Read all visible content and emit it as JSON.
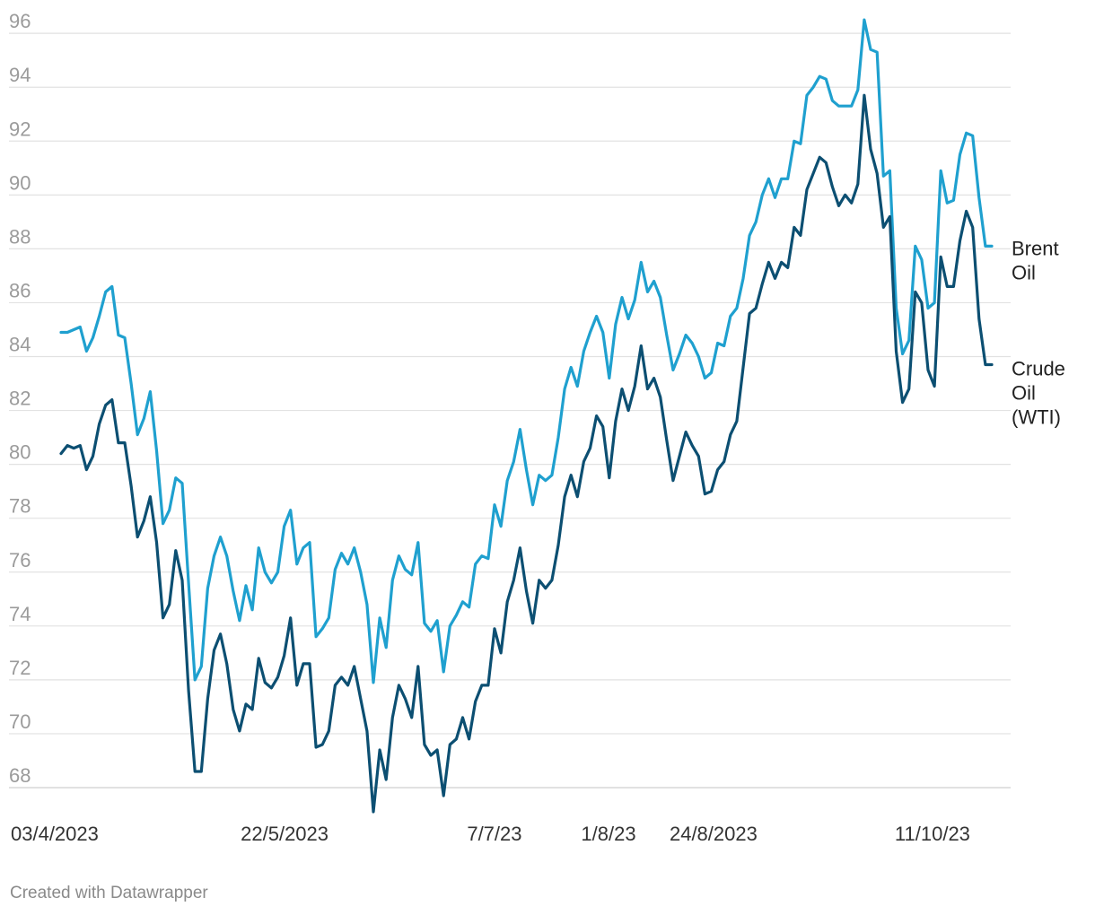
{
  "credit": "Created with Datawrapper",
  "chart_data": {
    "type": "line",
    "title": "",
    "xlabel": "",
    "ylabel": "",
    "ylim": [
      67,
      97
    ],
    "yticks": [
      68,
      70,
      72,
      74,
      76,
      78,
      80,
      82,
      84,
      86,
      88,
      90,
      92,
      94,
      96
    ],
    "x_start": "03/4/2023",
    "x_end": "24/10/2023",
    "x_tick_labels": [
      {
        "date": "2023-04-03",
        "label": "03/4/2023"
      },
      {
        "date": "2023-05-22",
        "label": "22/5/2023"
      },
      {
        "date": "2023-07-07",
        "label": "7/7/23"
      },
      {
        "date": "2023-08-01",
        "label": "1/8/23"
      },
      {
        "date": "2023-08-24",
        "label": "24/8/2023"
      },
      {
        "date": "2023-10-11",
        "label": "11/10/23"
      }
    ],
    "grid": true,
    "series": [
      {
        "name": "Brent Oil",
        "label_lines": [
          "Brent",
          "Oil"
        ],
        "color": "#1fa0cf",
        "values": [
          84.9,
          84.9,
          85.0,
          85.1,
          84.2,
          84.7,
          85.5,
          86.4,
          86.6,
          84.8,
          84.7,
          83.0,
          81.1,
          81.7,
          82.7,
          80.5,
          77.8,
          78.3,
          79.5,
          79.3,
          75.6,
          72.0,
          72.5,
          75.4,
          76.6,
          77.3,
          76.6,
          75.3,
          74.2,
          75.5,
          74.6,
          76.9,
          76.0,
          75.6,
          76.0,
          77.7,
          78.3,
          76.3,
          76.9,
          77.1,
          73.6,
          73.9,
          74.3,
          76.1,
          76.7,
          76.3,
          76.9,
          76.0,
          74.8,
          71.9,
          74.3,
          73.2,
          75.7,
          76.6,
          76.1,
          75.9,
          77.1,
          74.1,
          73.8,
          74.2,
          72.3,
          74.0,
          74.4,
          74.9,
          74.7,
          76.3,
          76.6,
          76.5,
          78.5,
          77.7,
          79.4,
          80.1,
          81.3,
          79.8,
          78.5,
          79.6,
          79.4,
          79.6,
          81.0,
          82.8,
          83.6,
          82.9,
          84.2,
          84.9,
          85.5,
          84.9,
          83.2,
          85.2,
          86.2,
          85.4,
          86.1,
          87.5,
          86.4,
          86.8,
          86.2,
          84.8,
          83.5,
          84.1,
          84.8,
          84.5,
          84.0,
          83.2,
          83.4,
          84.5,
          84.4,
          85.5,
          85.8,
          86.9,
          88.5,
          89.0,
          90.0,
          90.6,
          89.9,
          90.6,
          90.6,
          92.0,
          91.9,
          93.7,
          94.0,
          94.4,
          94.3,
          93.5,
          93.3,
          93.3,
          93.3,
          93.9,
          96.5,
          95.4,
          95.3,
          90.7,
          90.9,
          85.8,
          84.1,
          84.6,
          88.1,
          87.6,
          85.8,
          86.0,
          90.9,
          89.7,
          89.8,
          91.5,
          92.3,
          92.2,
          89.9,
          88.1,
          88.1
        ]
      },
      {
        "name": "Crude Oil (WTI)",
        "label_lines": [
          "Crude",
          "Oil",
          "(WTI)"
        ],
        "color": "#0c4f72",
        "values": [
          80.4,
          80.7,
          80.6,
          80.7,
          79.8,
          80.3,
          81.5,
          82.2,
          82.4,
          80.8,
          80.8,
          79.2,
          77.3,
          77.9,
          78.8,
          77.1,
          74.3,
          74.8,
          76.8,
          75.7,
          71.6,
          68.6,
          68.6,
          71.3,
          73.1,
          73.7,
          72.6,
          70.9,
          70.1,
          71.1,
          70.9,
          72.8,
          71.9,
          71.7,
          72.1,
          72.9,
          74.3,
          71.8,
          72.6,
          72.6,
          69.5,
          69.6,
          70.1,
          71.8,
          72.1,
          71.8,
          72.5,
          71.3,
          70.1,
          67.1,
          69.4,
          68.3,
          70.6,
          71.8,
          71.3,
          70.6,
          72.5,
          69.6,
          69.2,
          69.4,
          67.7,
          69.6,
          69.8,
          70.6,
          69.8,
          71.2,
          71.8,
          71.8,
          73.9,
          73.0,
          74.9,
          75.7,
          76.9,
          75.3,
          74.1,
          75.7,
          75.4,
          75.7,
          77.0,
          78.8,
          79.6,
          78.8,
          80.1,
          80.6,
          81.8,
          81.4,
          79.5,
          81.6,
          82.8,
          82.0,
          82.9,
          84.4,
          82.8,
          83.2,
          82.5,
          80.9,
          79.4,
          80.3,
          81.2,
          80.7,
          80.3,
          78.9,
          79.0,
          79.8,
          80.1,
          81.1,
          81.6,
          83.6,
          85.6,
          85.8,
          86.7,
          87.5,
          86.9,
          87.5,
          87.3,
          88.8,
          88.5,
          90.2,
          90.8,
          91.4,
          91.2,
          90.3,
          89.6,
          90.0,
          89.7,
          90.4,
          93.7,
          91.7,
          90.8,
          88.8,
          89.2,
          84.2,
          82.3,
          82.8,
          86.4,
          86.0,
          83.5,
          82.9,
          87.7,
          86.6,
          86.6,
          88.3,
          89.4,
          88.8,
          85.4,
          83.7,
          83.7
        ]
      }
    ]
  }
}
